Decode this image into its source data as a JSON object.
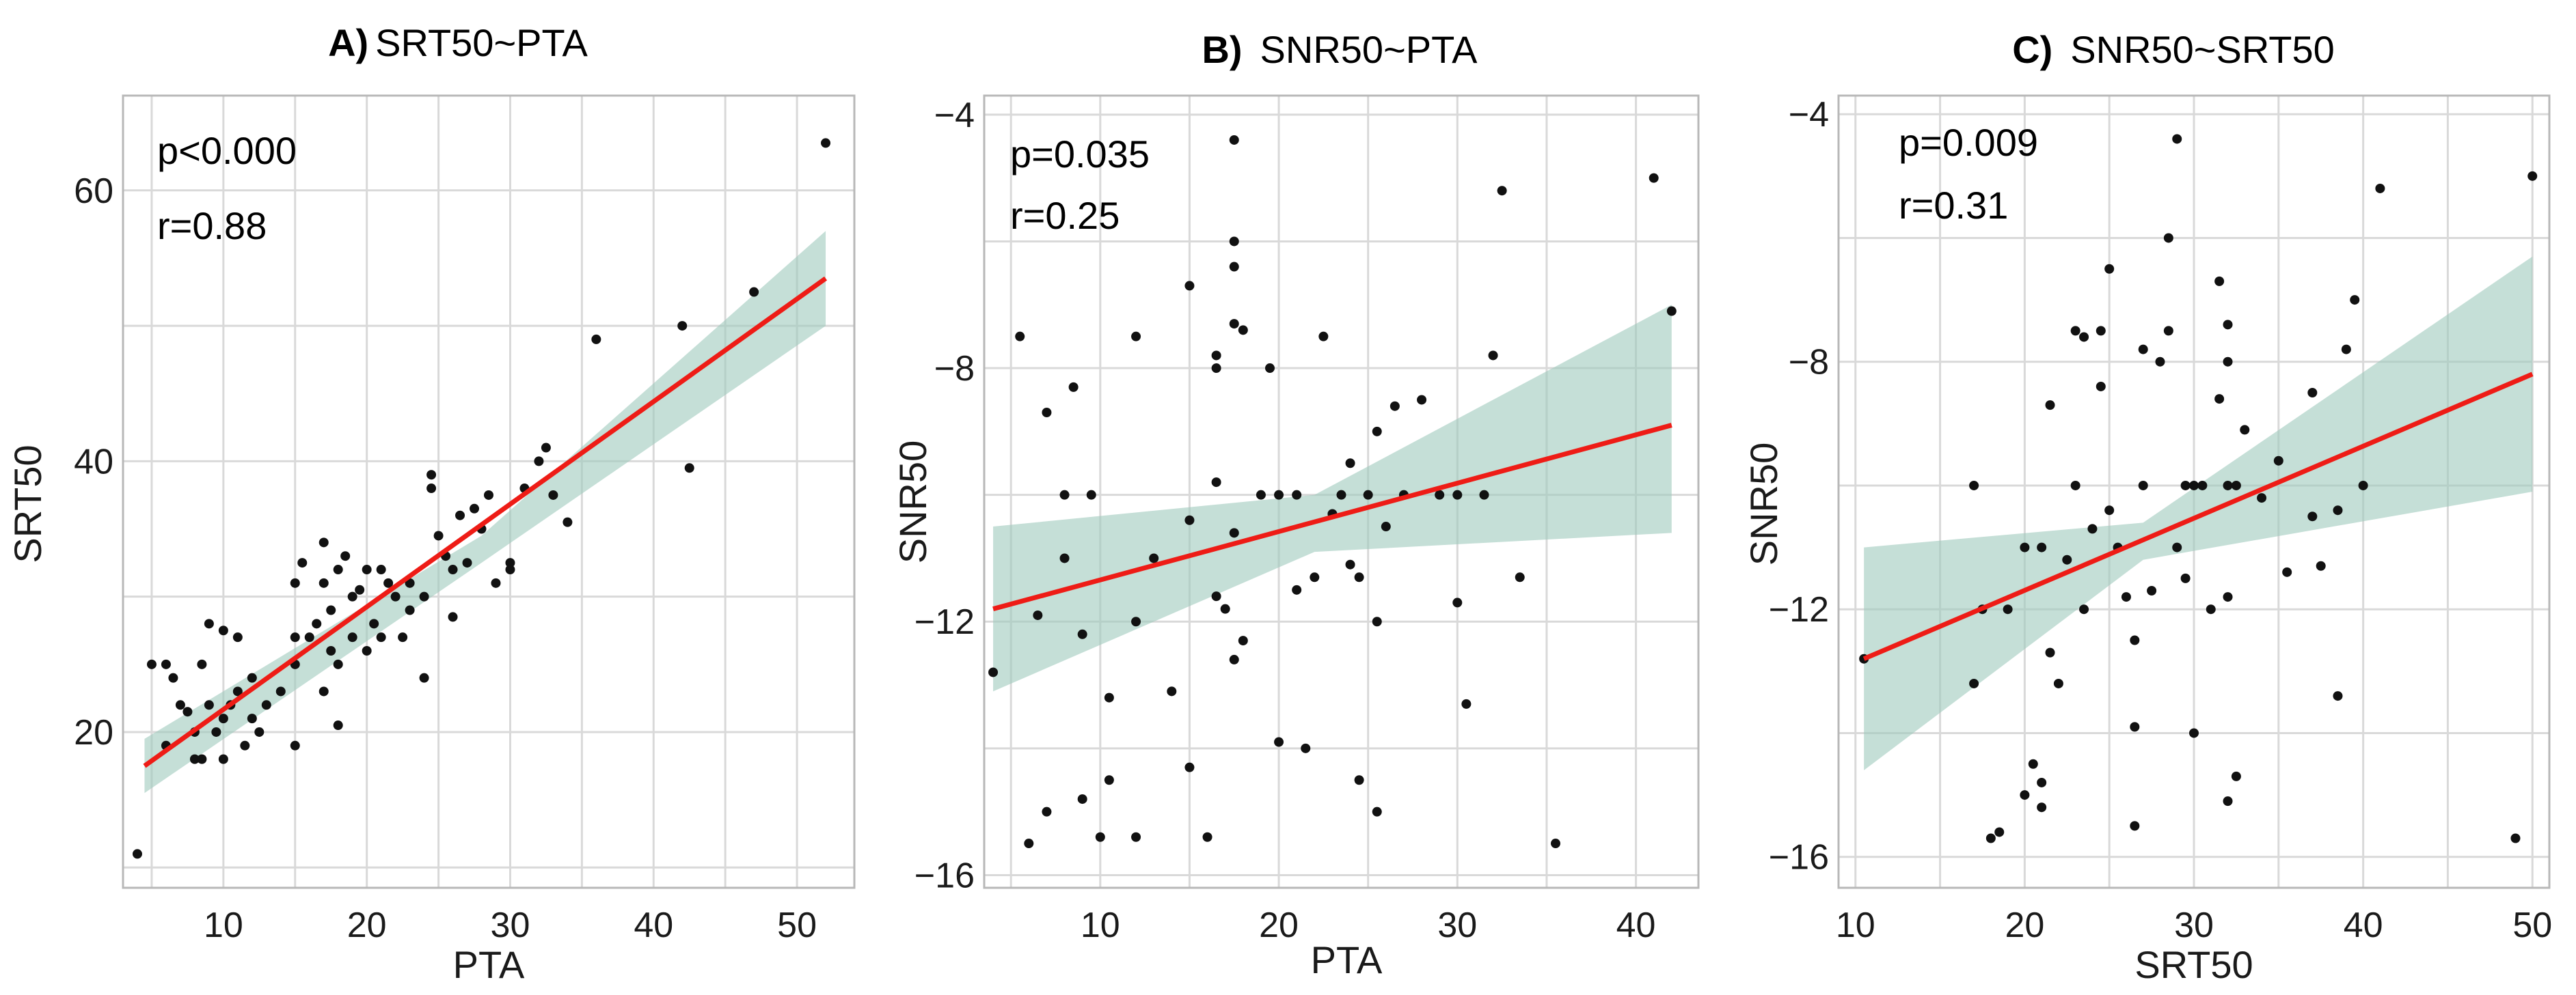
{
  "chart_data": [
    {
      "type": "scatter",
      "panel_letter": "A)",
      "title": "SRT50~PTA",
      "xlabel": "PTA",
      "ylabel": "SRT50",
      "xlim": [
        3,
        54
      ],
      "ylim": [
        8.5,
        67
      ],
      "xticks": [
        10,
        20,
        30,
        40,
        50
      ],
      "yticks": [
        20,
        40,
        60
      ],
      "stats": {
        "p": "p<0.000",
        "r": "r=0.88"
      },
      "fit": {
        "x": [
          4.5,
          52
        ],
        "y": [
          17.5,
          53.5
        ]
      },
      "ci_band": {
        "x": [
          4.5,
          28,
          52
        ],
        "upper": [
          19.5,
          34.5,
          57
        ],
        "lower": [
          15.5,
          32.5,
          50
        ]
      },
      "points": [
        [
          4,
          11
        ],
        [
          5,
          25
        ],
        [
          6,
          25
        ],
        [
          6,
          19
        ],
        [
          6.5,
          24
        ],
        [
          7,
          22
        ],
        [
          7.5,
          21.5
        ],
        [
          8,
          18
        ],
        [
          8,
          20
        ],
        [
          8.5,
          18
        ],
        [
          8.5,
          25
        ],
        [
          9,
          22
        ],
        [
          9,
          28
        ],
        [
          9.5,
          20
        ],
        [
          10,
          18
        ],
        [
          10,
          21
        ],
        [
          10,
          27.5
        ],
        [
          10.5,
          22
        ],
        [
          11,
          27
        ],
        [
          11,
          23
        ],
        [
          11.5,
          19
        ],
        [
          12,
          21
        ],
        [
          12,
          24
        ],
        [
          12.5,
          20
        ],
        [
          13,
          22
        ],
        [
          14,
          23
        ],
        [
          15,
          19
        ],
        [
          15,
          25
        ],
        [
          15,
          27
        ],
        [
          15,
          31
        ],
        [
          15.5,
          32.5
        ],
        [
          16,
          27
        ],
        [
          16.5,
          28
        ],
        [
          17,
          23
        ],
        [
          17,
          31
        ],
        [
          17,
          34
        ],
        [
          17.5,
          26
        ],
        [
          17.5,
          29
        ],
        [
          18,
          20.5
        ],
        [
          18,
          25
        ],
        [
          18,
          32
        ],
        [
          18.5,
          33
        ],
        [
          19,
          27
        ],
        [
          19,
          30
        ],
        [
          19.5,
          30.5
        ],
        [
          20,
          26
        ],
        [
          20,
          32
        ],
        [
          20.5,
          28
        ],
        [
          21,
          27
        ],
        [
          21,
          32
        ],
        [
          21.5,
          31
        ],
        [
          22,
          30
        ],
        [
          22.5,
          27
        ],
        [
          23,
          31
        ],
        [
          23,
          29
        ],
        [
          24,
          24
        ],
        [
          24,
          30
        ],
        [
          24.5,
          38
        ],
        [
          24.5,
          39
        ],
        [
          25,
          34.5
        ],
        [
          25.5,
          33
        ],
        [
          26,
          28.5
        ],
        [
          26,
          32
        ],
        [
          26.5,
          36
        ],
        [
          27,
          32.5
        ],
        [
          27.5,
          36.5
        ],
        [
          28,
          35
        ],
        [
          28.5,
          37.5
        ],
        [
          29,
          31
        ],
        [
          30,
          32
        ],
        [
          30,
          32.5
        ],
        [
          31,
          38
        ],
        [
          32,
          40
        ],
        [
          32.5,
          41
        ],
        [
          33,
          37.5
        ],
        [
          34,
          35.5
        ],
        [
          36,
          49
        ],
        [
          42,
          50
        ],
        [
          42.5,
          39.5
        ],
        [
          47,
          52.5
        ],
        [
          52,
          63.5
        ]
      ]
    },
    {
      "type": "scatter",
      "panel_letter": "B)",
      "title": "SNR50~PTA",
      "xlabel": "PTA",
      "ylabel": "SNR50",
      "xlim": [
        3.5,
        43.5
      ],
      "ylim": [
        -16.2,
        -3.7
      ],
      "xticks": [
        10,
        20,
        30,
        40
      ],
      "yticks": [
        -16,
        -12,
        -8,
        -4
      ],
      "stats": {
        "p": "p=0.035",
        "r": "r=0.25"
      },
      "fit": {
        "x": [
          4,
          42
        ],
        "y": [
          -11.8,
          -8.9
        ]
      },
      "ci_band": {
        "x": [
          4,
          22,
          42
        ],
        "upper": [
          -10.5,
          -10.0,
          -7.0
        ],
        "lower": [
          -13.1,
          -10.9,
          -10.6
        ]
      },
      "points": [
        [
          4,
          -12.8
        ],
        [
          5.5,
          -7.5
        ],
        [
          6,
          -15.5
        ],
        [
          6.5,
          -11.9
        ],
        [
          7,
          -8.7
        ],
        [
          7,
          -15.0
        ],
        [
          8,
          -10.0
        ],
        [
          8,
          -11.0
        ],
        [
          8.5,
          -8.3
        ],
        [
          9,
          -14.8
        ],
        [
          9,
          -12.2
        ],
        [
          9.5,
          -10.0
        ],
        [
          10,
          -15.4
        ],
        [
          10.5,
          -13.2
        ],
        [
          10.5,
          -14.5
        ],
        [
          12,
          -7.5
        ],
        [
          12,
          -12.0
        ],
        [
          12,
          -15.4
        ],
        [
          13,
          -11.0
        ],
        [
          14,
          -13.1
        ],
        [
          15,
          -6.7
        ],
        [
          15,
          -10.4
        ],
        [
          15,
          -14.3
        ],
        [
          16,
          -15.4
        ],
        [
          16.5,
          -7.8
        ],
        [
          16.5,
          -8.0
        ],
        [
          16.5,
          -9.8
        ],
        [
          16.5,
          -11.6
        ],
        [
          17,
          -11.8
        ],
        [
          17.5,
          -4.4
        ],
        [
          17.5,
          -7.3
        ],
        [
          17.5,
          -6.0
        ],
        [
          17.5,
          -6.4
        ],
        [
          17.5,
          -10.6
        ],
        [
          17.5,
          -12.6
        ],
        [
          18,
          -7.4
        ],
        [
          18,
          -12.3
        ],
        [
          19,
          -10.0
        ],
        [
          19.5,
          -8.0
        ],
        [
          20,
          -10.0
        ],
        [
          20,
          -13.9
        ],
        [
          21,
          -10.0
        ],
        [
          21,
          -11.5
        ],
        [
          21.5,
          -14.0
        ],
        [
          22,
          -11.3
        ],
        [
          22.5,
          -7.5
        ],
        [
          23,
          -10.3
        ],
        [
          23.5,
          -10.0
        ],
        [
          24,
          -9.5
        ],
        [
          24,
          -11.1
        ],
        [
          24.5,
          -11.3
        ],
        [
          24.5,
          -14.5
        ],
        [
          25,
          -10.0
        ],
        [
          25.5,
          -9.0
        ],
        [
          25.5,
          -12.0
        ],
        [
          25.5,
          -15.0
        ],
        [
          26,
          -10.5
        ],
        [
          26.5,
          -8.6
        ],
        [
          27,
          -10.0
        ],
        [
          28,
          -8.5
        ],
        [
          29,
          -10.0
        ],
        [
          30,
          -10.0
        ],
        [
          30,
          -11.7
        ],
        [
          30.5,
          -13.3
        ],
        [
          31.5,
          -10.0
        ],
        [
          32,
          -7.8
        ],
        [
          32.5,
          -5.2
        ],
        [
          33.5,
          -11.3
        ],
        [
          35.5,
          -15.5
        ],
        [
          41,
          -5.0
        ],
        [
          42,
          -7.1
        ]
      ]
    },
    {
      "type": "scatter",
      "panel_letter": "C)",
      "title": "SNR50~SRT50",
      "xlabel": "SRT50",
      "ylabel": "SNR50",
      "xlim": [
        9,
        51
      ],
      "ylim": [
        -16.5,
        -3.7
      ],
      "xticks": [
        10,
        20,
        30,
        40,
        50
      ],
      "yticks": [
        -16,
        -12,
        -8,
        -4
      ],
      "stats": {
        "p": "p=0.009",
        "r": "r=0.31"
      },
      "fit": {
        "x": [
          10.5,
          50
        ],
        "y": [
          -12.8,
          -8.2
        ]
      },
      "ci_band": {
        "x": [
          10.5,
          27,
          50
        ],
        "upper": [
          -11.0,
          -10.6,
          -6.3
        ],
        "lower": [
          -14.6,
          -11.2,
          -10.1
        ]
      },
      "points": [
        [
          10.5,
          -12.8
        ],
        [
          17,
          -10.0
        ],
        [
          17,
          -13.2
        ],
        [
          17.5,
          -12.0
        ],
        [
          18,
          -15.7
        ],
        [
          18.5,
          -15.6
        ],
        [
          19,
          -12.0
        ],
        [
          20,
          -11.0
        ],
        [
          20,
          -15.0
        ],
        [
          20.5,
          -14.5
        ],
        [
          21,
          -14.8
        ],
        [
          21,
          -15.2
        ],
        [
          21,
          -11.0
        ],
        [
          21.5,
          -8.7
        ],
        [
          21.5,
          -12.7
        ],
        [
          22,
          -13.2
        ],
        [
          22.5,
          -11.2
        ],
        [
          23,
          -7.5
        ],
        [
          23,
          -10.0
        ],
        [
          23.5,
          -12.0
        ],
        [
          23.5,
          -7.6
        ],
        [
          24,
          -10.7
        ],
        [
          24.5,
          -7.5
        ],
        [
          24.5,
          -8.4
        ],
        [
          25,
          -6.5
        ],
        [
          25,
          -10.4
        ],
        [
          25.5,
          -11.0
        ],
        [
          26,
          -11.8
        ],
        [
          26.5,
          -13.9
        ],
        [
          26.5,
          -15.5
        ],
        [
          26.5,
          -12.5
        ],
        [
          27,
          -7.8
        ],
        [
          27,
          -10.0
        ],
        [
          27.5,
          -11.7
        ],
        [
          28,
          -8.0
        ],
        [
          28.5,
          -6.0
        ],
        [
          28.5,
          -7.5
        ],
        [
          29,
          -4.4
        ],
        [
          29,
          -11.0
        ],
        [
          29.5,
          -10.0
        ],
        [
          29.5,
          -11.5
        ],
        [
          30,
          -14.0
        ],
        [
          30,
          -10.0
        ],
        [
          30.5,
          -10.0
        ],
        [
          31,
          -12.0
        ],
        [
          31.5,
          -6.7
        ],
        [
          31.5,
          -8.6
        ],
        [
          32,
          -7.4
        ],
        [
          32,
          -8.0
        ],
        [
          32,
          -10.0
        ],
        [
          32,
          -11.8
        ],
        [
          32,
          -15.1
        ],
        [
          32.5,
          -10.0
        ],
        [
          32.5,
          -14.7
        ],
        [
          33,
          -9.1
        ],
        [
          34,
          -10.2
        ],
        [
          35,
          -9.6
        ],
        [
          35.5,
          -11.4
        ],
        [
          37,
          -8.5
        ],
        [
          37,
          -10.5
        ],
        [
          37.5,
          -11.3
        ],
        [
          38.5,
          -10.4
        ],
        [
          38.5,
          -13.4
        ],
        [
          39,
          -7.8
        ],
        [
          39.5,
          -7.0
        ],
        [
          40,
          -10.0
        ],
        [
          41,
          -5.2
        ],
        [
          49,
          -15.7
        ],
        [
          50,
          -5.0
        ]
      ]
    }
  ]
}
